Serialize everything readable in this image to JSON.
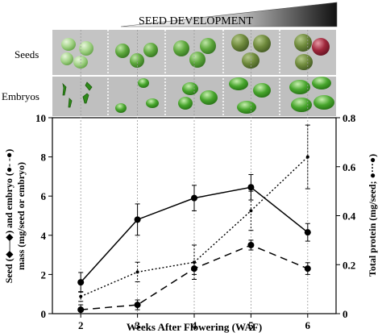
{
  "header": {
    "title": "SEED DEVELOPMENT",
    "row_labels": [
      "Seeds",
      "Embryos"
    ]
  },
  "chart_data": {
    "type": "line",
    "x": [
      2,
      3,
      4,
      5,
      6
    ],
    "xlabel": "Weeks After Flowering (WAF)",
    "xlim": [
      1.5,
      6.5
    ],
    "ylabel_left_line1": "Seed (◆—◆) and embryo (●- -●)",
    "ylabel_left_line2": "mass (mg/seed or embryo)",
    "ylim_left": [
      0,
      10
    ],
    "yticks_left": [
      0,
      2,
      4,
      6,
      8,
      10
    ],
    "ylabel_right": "Total protein (mg/seed; ●···●)",
    "ylim_right": [
      0,
      0.8
    ],
    "yticks_right": [
      0,
      0.2,
      0.4,
      0.6,
      0.8
    ],
    "grid": "dotted vertical lines at week ticks",
    "series": [
      {
        "axis": "left",
        "style": "solid",
        "values": [
          1.6,
          4.8,
          5.9,
          6.45,
          4.15
        ],
        "errors": [
          0.5,
          0.8,
          0.65,
          0.65,
          0.45
        ]
      },
      {
        "axis": "left",
        "style": "dashed",
        "values": [
          0.2,
          0.45,
          2.3,
          3.5,
          2.3
        ],
        "errors": [
          0.25,
          0.25,
          0.3,
          0.25,
          0.3
        ]
      },
      {
        "axis": "right",
        "style": "dotted",
        "values": [
          0.07,
          0.17,
          0.21,
          0.42,
          0.64
        ],
        "errors": [
          0.02,
          0.04,
          0.07,
          0.08,
          0.13
        ]
      }
    ]
  }
}
